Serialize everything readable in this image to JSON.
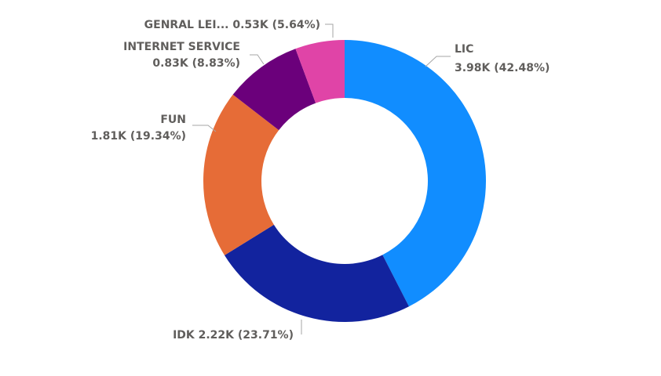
{
  "chart_data": {
    "type": "pie",
    "style": "donut",
    "slices": [
      {
        "label": "LIC",
        "value": 3.98,
        "value_text": "3.98K",
        "percent_text": "(42.48%)",
        "color": "#118DFF"
      },
      {
        "label": "IDK",
        "value": 2.22,
        "value_text": "2.22K",
        "percent_text": "(23.71%)",
        "color": "#12239E"
      },
      {
        "label": "FUN",
        "value": 1.81,
        "value_text": "1.81K",
        "percent_text": "(19.34%)",
        "color": "#E66C37"
      },
      {
        "label": "INTERNET SERVICE",
        "value": 0.83,
        "value_text": "0.83K",
        "percent_text": "(8.83%)",
        "color": "#6B007B"
      },
      {
        "label": "GENRAL LEI...",
        "value": 0.53,
        "value_text": "0.53K",
        "percent_text": "(5.64%)",
        "color": "#E044A7"
      }
    ],
    "label_text": {
      "lic_name": "LIC",
      "lic_detail": "3.98K (42.48%)",
      "idk_line": "IDK 2.22K (23.71%)",
      "fun_name": "FUN",
      "fun_detail": "1.81K (19.34%)",
      "internet_name": "INTERNET SERVICE",
      "internet_detail": "0.83K (8.83%)",
      "genral_line": "GENRAL LEI... 0.53K (5.64%)"
    }
  }
}
